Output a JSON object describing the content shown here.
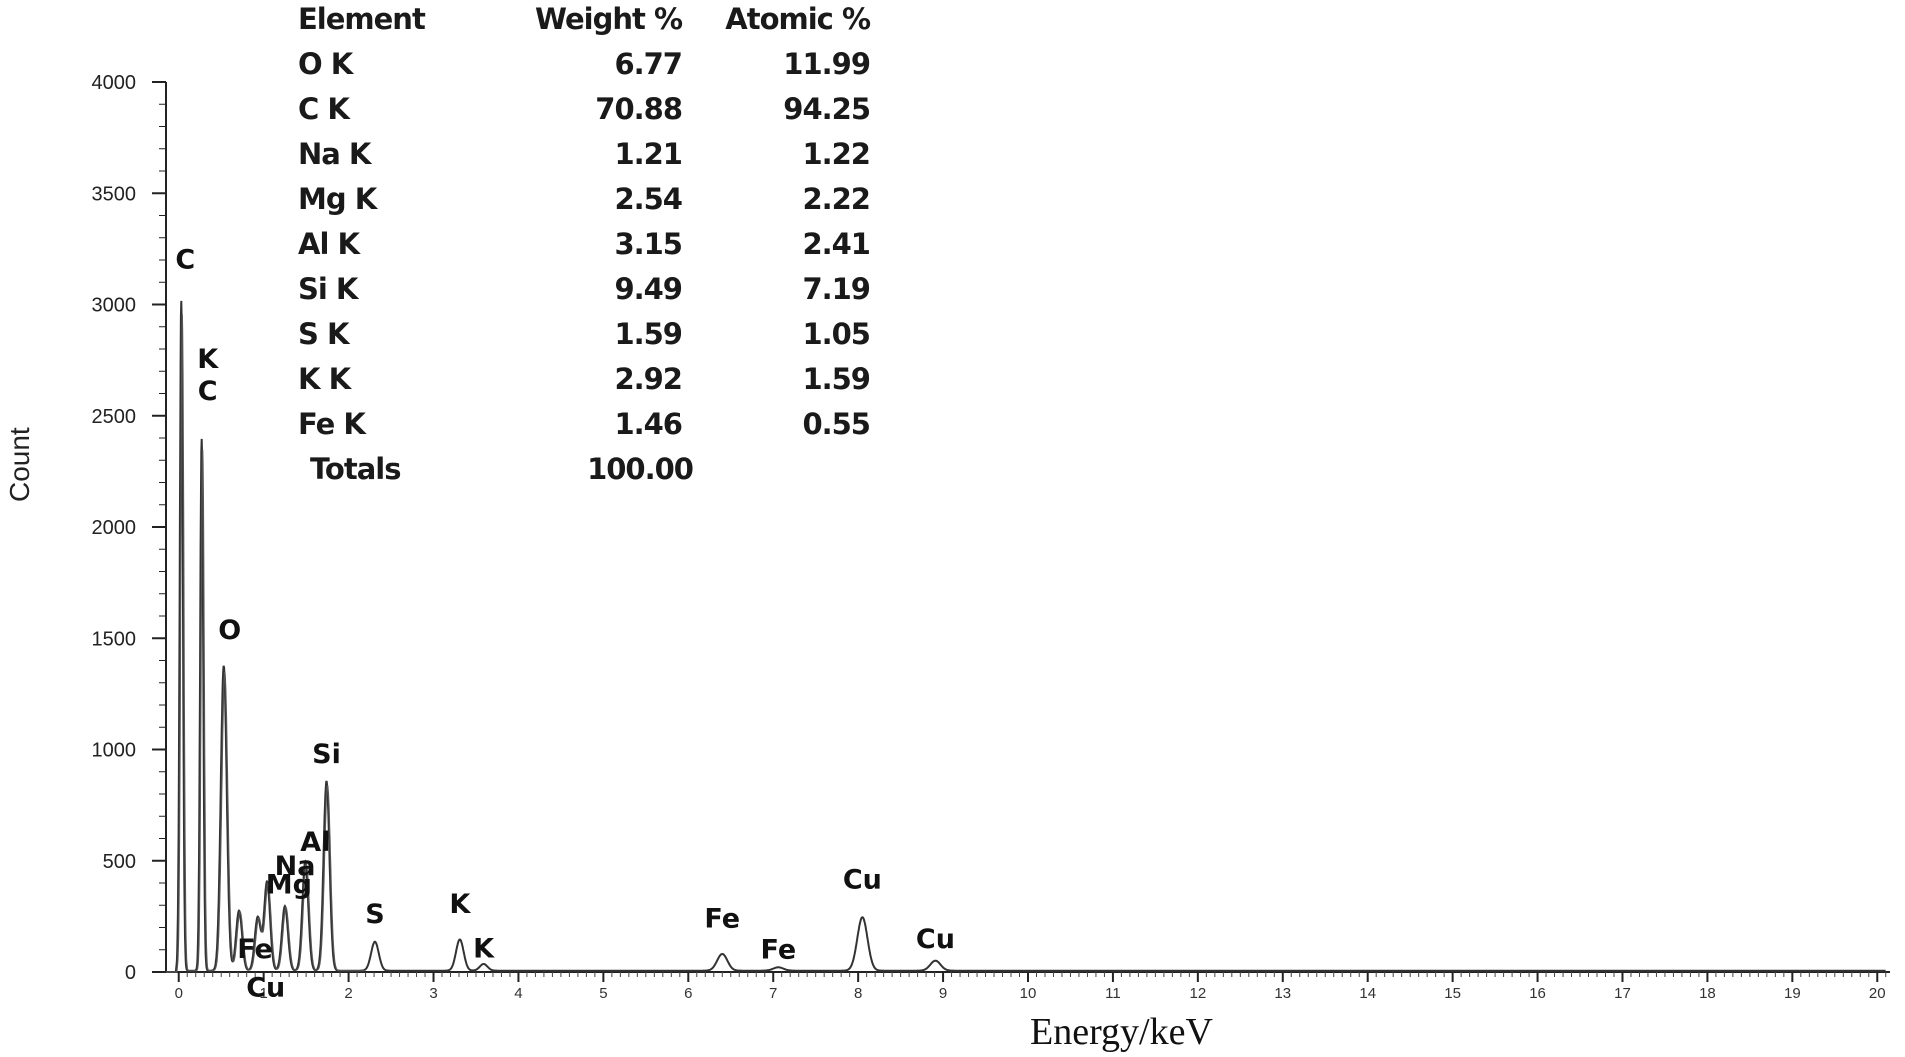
{
  "chart_data": {
    "type": "line",
    "xlabel": "Energy/keV",
    "ylabel": "Count",
    "xlim": [
      -0.15,
      20.15
    ],
    "ylim": [
      0,
      4000
    ],
    "x_ticks": [
      0,
      1,
      2,
      3,
      4,
      5,
      6,
      7,
      8,
      9,
      10,
      11,
      12,
      13,
      14,
      15,
      16,
      17,
      18,
      19,
      20
    ],
    "y_ticks": [
      0,
      500,
      1000,
      1500,
      2000,
      2500,
      3000,
      3500,
      4000
    ],
    "peaks": [
      {
        "x": 0.03,
        "y": 3010,
        "label": "C"
      },
      {
        "x": 0.27,
        "y": 2390,
        "label": "K\nC"
      },
      {
        "x": 0.53,
        "y": 1370,
        "label": "O"
      },
      {
        "x": 0.71,
        "y": 270,
        "label": "Fe"
      },
      {
        "x": 0.93,
        "y": 240,
        "label": "Cu"
      },
      {
        "x": 1.04,
        "y": 400,
        "label": "Na"
      },
      {
        "x": 1.25,
        "y": 290,
        "label": "Mg"
      },
      {
        "x": 1.49,
        "y": 490,
        "label": "Al"
      },
      {
        "x": 1.74,
        "y": 850,
        "label": "Si"
      },
      {
        "x": 2.31,
        "y": 130,
        "label": "S"
      },
      {
        "x": 3.31,
        "y": 140,
        "label": "K"
      },
      {
        "x": 3.59,
        "y": 30,
        "label": "K"
      },
      {
        "x": 6.4,
        "y": 75,
        "label": "Fe"
      },
      {
        "x": 7.06,
        "y": 15,
        "label": "Fe"
      },
      {
        "x": 8.05,
        "y": 240,
        "label": "Cu"
      },
      {
        "x": 8.91,
        "y": 45,
        "label": "Cu"
      }
    ],
    "table": {
      "headers": [
        "Element",
        "Weight %",
        "Atomic %"
      ],
      "rows": [
        [
          "O K",
          "6.77",
          "11.99"
        ],
        [
          "C K",
          "70.88",
          "94.25"
        ],
        [
          "Na K",
          "1.21",
          "1.22"
        ],
        [
          "Mg K",
          "2.54",
          "2.22"
        ],
        [
          "Al K",
          "3.15",
          "2.41"
        ],
        [
          "Si K",
          "9.49",
          "7.19"
        ],
        [
          "S K",
          "1.59",
          "1.05"
        ],
        [
          "K K",
          "2.92",
          "1.59"
        ],
        [
          "Fe K",
          "1.46",
          "0.55"
        ]
      ],
      "totals": [
        "Totals",
        "100.00"
      ]
    }
  }
}
